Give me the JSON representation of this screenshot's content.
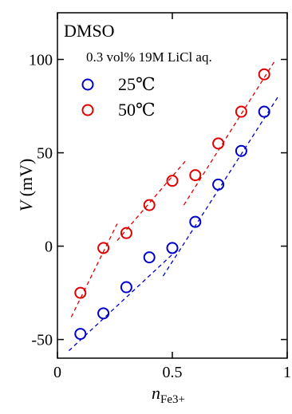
{
  "chart_data": {
    "type": "scatter",
    "xlim": [
      0,
      1
    ],
    "ylim": [
      -60,
      125
    ],
    "x_ticks": [
      0,
      0.5,
      1
    ],
    "x_tick_labels": [
      "0",
      "0.5",
      "1"
    ],
    "y_ticks": [
      -50,
      0,
      50,
      100
    ],
    "y_tick_labels": [
      "-50",
      "0",
      "50",
      "100"
    ],
    "xlabel_main": "n",
    "xlabel_sub": "Fe3+",
    "ylabel_italic": "V",
    "ylabel_rest": " (mV)",
    "annotation_title": "DMSO",
    "annotation_subtitle": "0.3 vol% 19M LiCl aq.",
    "grid": false,
    "legend": "top-left",
    "series": [
      {
        "name": "25℃",
        "color": "#0000cc",
        "x": [
          0.1,
          0.2,
          0.3,
          0.4,
          0.5,
          0.6,
          0.7,
          0.8,
          0.9
        ],
        "y": [
          -47,
          -36,
          -22,
          -6,
          -1,
          13,
          33,
          51,
          72
        ],
        "fit_lines": [
          {
            "x": [
              0.05,
              0.53
            ],
            "y": [
              -56,
              -1
            ]
          },
          {
            "x": [
              0.46,
              0.96
            ],
            "y": [
              -16,
              80
            ]
          }
        ]
      },
      {
        "name": "50℃",
        "color": "#e00000",
        "x": [
          0.1,
          0.2,
          0.3,
          0.4,
          0.5,
          0.6,
          0.7,
          0.8,
          0.9
        ],
        "y": [
          -25,
          -1,
          7,
          22,
          35,
          38,
          55,
          72,
          92
        ],
        "fit_lines": [
          {
            "x": [
              0.06,
              0.26
            ],
            "y": [
              -38,
              12
            ]
          },
          {
            "x": [
              0.26,
              0.56
            ],
            "y": [
              3,
              46
            ]
          },
          {
            "x": [
              0.55,
              0.95
            ],
            "y": [
              22,
              100
            ]
          }
        ]
      }
    ]
  }
}
